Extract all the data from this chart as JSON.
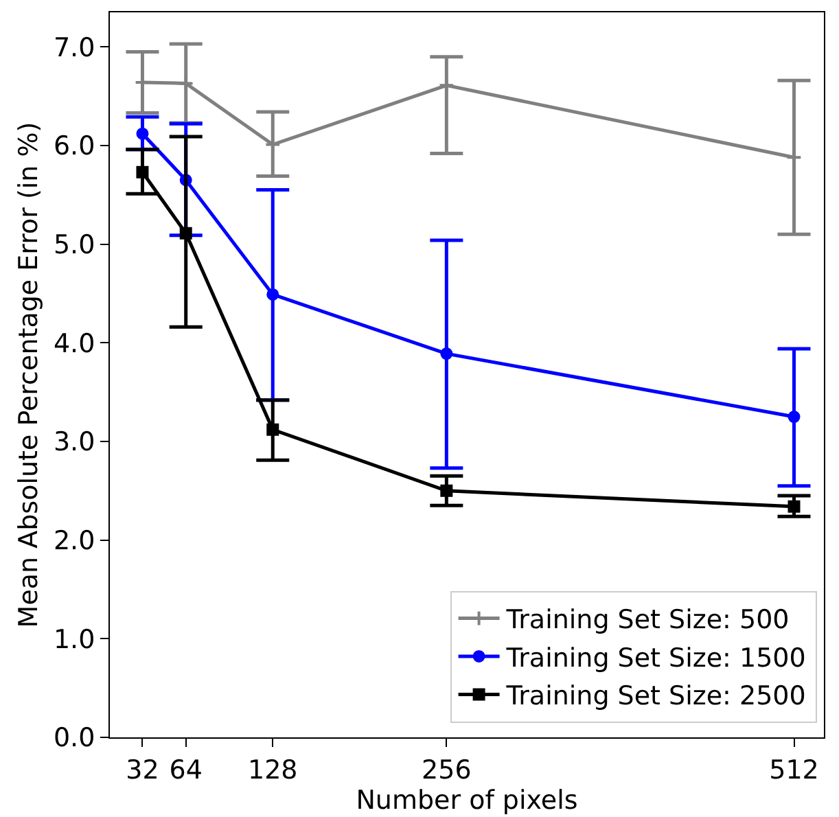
{
  "chart_data": {
    "type": "line",
    "xlabel": "Number of pixels",
    "ylabel": "Mean Absolute Percentage Error (in %)",
    "x": [
      32,
      64,
      128,
      256,
      512
    ],
    "series": [
      {
        "name": "Training Set Size: 500",
        "color": "#808080",
        "marker": "cross",
        "values": [
          6.64,
          6.63,
          6.01,
          6.61,
          5.88
        ],
        "errors": [
          [
            6.33,
            6.95
          ],
          [
            6.23,
            7.03
          ],
          [
            5.69,
            6.34
          ],
          [
            5.92,
            6.9
          ],
          [
            5.1,
            6.66
          ]
        ]
      },
      {
        "name": "Training Set Size: 1500",
        "color": "#0000ff",
        "marker": "circle",
        "values": [
          6.12,
          5.65,
          4.49,
          3.89,
          3.25
        ],
        "errors": [
          [
            5.96,
            6.29
          ],
          [
            5.09,
            6.22
          ],
          [
            3.42,
            5.55
          ],
          [
            2.73,
            5.04
          ],
          [
            2.55,
            3.94
          ]
        ]
      },
      {
        "name": "Training Set Size: 2500",
        "color": "#000000",
        "marker": "square",
        "values": [
          5.73,
          5.11,
          3.12,
          2.5,
          2.34
        ],
        "errors": [
          [
            5.51,
            5.96
          ],
          [
            4.16,
            6.09
          ],
          [
            2.81,
            3.42
          ],
          [
            2.35,
            2.65
          ],
          [
            2.24,
            2.45
          ]
        ]
      }
    ],
    "xlim": [
      8,
      534
    ],
    "xticks": [
      32,
      64,
      128,
      256,
      512
    ],
    "ylim": [
      0,
      7.35
    ],
    "yticks": [
      {
        "value": 0,
        "label": "0.0"
      },
      {
        "value": 1,
        "label": "1.0"
      },
      {
        "value": 2,
        "label": "2.0"
      },
      {
        "value": 3,
        "label": "3.0"
      },
      {
        "value": 4,
        "label": "4.0"
      },
      {
        "value": 5,
        "label": "5.0"
      },
      {
        "value": 6,
        "label": "6.0"
      },
      {
        "value": 7,
        "label": "7.0"
      }
    ],
    "legend": "bottom right",
    "line_style": "solid"
  }
}
